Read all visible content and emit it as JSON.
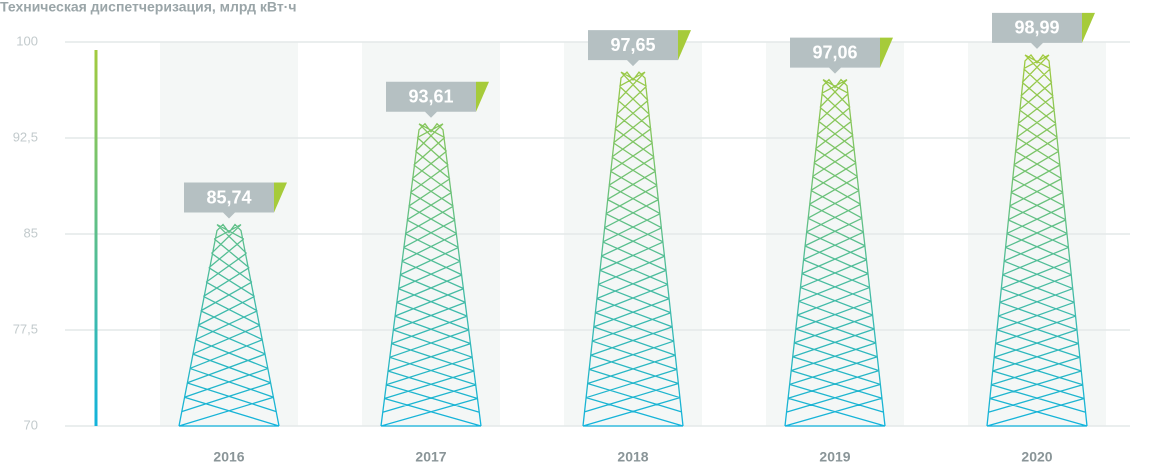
{
  "chart_data": {
    "type": "bar",
    "title": "Техническая диспетчеризация, млрд кВт·ч",
    "categories": [
      "2016",
      "2017",
      "2018",
      "2019",
      "2020"
    ],
    "values": [
      85.74,
      93.61,
      97.65,
      97.06,
      98.99
    ],
    "value_labels": [
      "85,74",
      "93,61",
      "97,65",
      "97,06",
      "98,99"
    ],
    "ylim": [
      70,
      100
    ],
    "yticks": [
      70,
      {
        "value": 77.5,
        "label": "77,5"
      },
      85,
      {
        "value": 92.5,
        "label": "92,5"
      },
      100
    ],
    "grid": true,
    "colors": [
      "#12b3dc",
      "#a6cb3a"
    ]
  }
}
